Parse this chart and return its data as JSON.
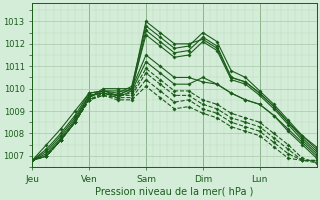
{
  "xlabel": "Pression niveau de la mer( hPa )",
  "bg_color": "#d4edd8",
  "plot_bg_color": "#d4edd8",
  "grid_major_color": "#a8c8a8",
  "grid_minor_color": "#b8d8b8",
  "line_color": "#1a5c1a",
  "ylim": [
    1006.5,
    1013.8
  ],
  "xlim": [
    0,
    120
  ],
  "day_labels": [
    "Jeu",
    "Ven",
    "Sam",
    "Dim",
    "Lun"
  ],
  "day_positions": [
    0,
    24,
    48,
    72,
    96
  ],
  "yticks": [
    1007,
    1008,
    1009,
    1010,
    1011,
    1012,
    1013
  ],
  "series": [
    {
      "start": 0,
      "points": [
        [
          0,
          1006.8
        ],
        [
          6,
          1007.5
        ],
        [
          12,
          1008.2
        ],
        [
          18,
          1009.0
        ],
        [
          24,
          1009.8
        ],
        [
          30,
          1009.9
        ],
        [
          36,
          1009.7
        ],
        [
          42,
          1010.0
        ],
        [
          48,
          1013.0
        ],
        [
          54,
          1012.5
        ],
        [
          60,
          1012.0
        ],
        [
          66,
          1012.0
        ],
        [
          72,
          1012.2
        ],
        [
          78,
          1011.8
        ],
        [
          84,
          1010.5
        ],
        [
          90,
          1010.3
        ],
        [
          96,
          1009.8
        ],
        [
          102,
          1009.2
        ],
        [
          108,
          1008.5
        ],
        [
          114,
          1007.9
        ],
        [
          120,
          1007.4
        ]
      ],
      "style": "solid"
    },
    {
      "start": 0,
      "points": [
        [
          0,
          1006.8
        ],
        [
          6,
          1007.3
        ],
        [
          12,
          1008.0
        ],
        [
          18,
          1008.8
        ],
        [
          24,
          1009.8
        ],
        [
          30,
          1009.9
        ],
        [
          36,
          1009.8
        ],
        [
          42,
          1010.1
        ],
        [
          48,
          1012.8
        ],
        [
          54,
          1012.3
        ],
        [
          60,
          1011.8
        ],
        [
          66,
          1011.9
        ],
        [
          72,
          1012.5
        ],
        [
          78,
          1012.1
        ],
        [
          84,
          1010.8
        ],
        [
          90,
          1010.5
        ],
        [
          96,
          1009.9
        ],
        [
          102,
          1009.3
        ],
        [
          108,
          1008.6
        ],
        [
          114,
          1007.9
        ],
        [
          120,
          1007.3
        ]
      ],
      "style": "solid"
    },
    {
      "start": 0,
      "points": [
        [
          0,
          1006.8
        ],
        [
          6,
          1007.2
        ],
        [
          12,
          1007.9
        ],
        [
          18,
          1008.7
        ],
        [
          24,
          1009.7
        ],
        [
          30,
          1009.8
        ],
        [
          36,
          1009.6
        ],
        [
          42,
          1009.9
        ],
        [
          48,
          1012.6
        ],
        [
          54,
          1012.1
        ],
        [
          60,
          1011.6
        ],
        [
          66,
          1011.7
        ],
        [
          72,
          1012.3
        ],
        [
          78,
          1011.9
        ],
        [
          84,
          1010.5
        ],
        [
          90,
          1010.3
        ],
        [
          96,
          1009.8
        ],
        [
          102,
          1009.2
        ],
        [
          108,
          1008.5
        ],
        [
          114,
          1007.8
        ],
        [
          120,
          1007.2
        ]
      ],
      "style": "solid"
    },
    {
      "start": 0,
      "points": [
        [
          0,
          1006.8
        ],
        [
          6,
          1007.1
        ],
        [
          12,
          1007.8
        ],
        [
          18,
          1008.6
        ],
        [
          24,
          1009.7
        ],
        [
          30,
          1009.8
        ],
        [
          36,
          1009.7
        ],
        [
          42,
          1010.0
        ],
        [
          48,
          1012.4
        ],
        [
          54,
          1011.9
        ],
        [
          60,
          1011.4
        ],
        [
          66,
          1011.5
        ],
        [
          72,
          1012.1
        ],
        [
          78,
          1011.7
        ],
        [
          84,
          1010.4
        ],
        [
          90,
          1010.2
        ],
        [
          96,
          1009.7
        ],
        [
          102,
          1009.1
        ],
        [
          108,
          1008.4
        ],
        [
          114,
          1007.7
        ],
        [
          120,
          1007.1
        ]
      ],
      "style": "solid"
    },
    {
      "start": 0,
      "points": [
        [
          0,
          1006.8
        ],
        [
          6,
          1007.0
        ],
        [
          12,
          1007.7
        ],
        [
          18,
          1008.5
        ],
        [
          24,
          1009.6
        ],
        [
          30,
          1010.0
        ],
        [
          36,
          1010.0
        ],
        [
          42,
          1010.0
        ],
        [
          48,
          1011.5
        ],
        [
          54,
          1011.0
        ],
        [
          60,
          1010.5
        ],
        [
          66,
          1010.5
        ],
        [
          72,
          1010.3
        ],
        [
          78,
          1010.2
        ],
        [
          84,
          1009.8
        ],
        [
          90,
          1009.5
        ],
        [
          96,
          1009.3
        ],
        [
          102,
          1008.8
        ],
        [
          108,
          1008.2
        ],
        [
          114,
          1007.6
        ],
        [
          120,
          1007.0
        ]
      ],
      "style": "solid"
    },
    {
      "start": 0,
      "points": [
        [
          0,
          1006.8
        ],
        [
          6,
          1007.0
        ],
        [
          12,
          1007.7
        ],
        [
          18,
          1008.5
        ],
        [
          24,
          1009.6
        ],
        [
          30,
          1009.9
        ],
        [
          36,
          1009.9
        ],
        [
          42,
          1009.9
        ],
        [
          48,
          1011.2
        ],
        [
          54,
          1010.7
        ],
        [
          60,
          1010.2
        ],
        [
          66,
          1010.2
        ],
        [
          72,
          1010.5
        ],
        [
          78,
          1010.2
        ],
        [
          84,
          1009.8
        ],
        [
          90,
          1009.5
        ],
        [
          96,
          1009.3
        ],
        [
          102,
          1008.8
        ],
        [
          108,
          1008.1
        ],
        [
          114,
          1007.5
        ],
        [
          120,
          1006.9
        ]
      ],
      "style": "solid"
    },
    {
      "start": 0,
      "points": [
        [
          0,
          1006.8
        ],
        [
          6,
          1007.0
        ],
        [
          12,
          1007.7
        ],
        [
          18,
          1008.5
        ],
        [
          24,
          1009.5
        ],
        [
          30,
          1009.8
        ],
        [
          36,
          1009.7
        ],
        [
          42,
          1009.8
        ],
        [
          48,
          1010.9
        ],
        [
          54,
          1010.4
        ],
        [
          60,
          1009.9
        ],
        [
          66,
          1009.9
        ],
        [
          72,
          1009.5
        ],
        [
          78,
          1009.3
        ],
        [
          84,
          1008.9
        ],
        [
          90,
          1008.7
        ],
        [
          96,
          1008.5
        ],
        [
          102,
          1008.0
        ],
        [
          108,
          1007.5
        ],
        [
          114,
          1006.9
        ],
        [
          120,
          1006.7
        ]
      ],
      "style": "dashed"
    },
    {
      "start": 0,
      "points": [
        [
          0,
          1006.8
        ],
        [
          6,
          1007.0
        ],
        [
          12,
          1007.7
        ],
        [
          18,
          1008.5
        ],
        [
          24,
          1009.5
        ],
        [
          30,
          1009.8
        ],
        [
          36,
          1009.7
        ],
        [
          42,
          1009.7
        ],
        [
          48,
          1010.7
        ],
        [
          54,
          1010.2
        ],
        [
          60,
          1009.7
        ],
        [
          66,
          1009.7
        ],
        [
          72,
          1009.3
        ],
        [
          78,
          1009.1
        ],
        [
          84,
          1008.7
        ],
        [
          90,
          1008.5
        ],
        [
          96,
          1008.3
        ],
        [
          102,
          1007.8
        ],
        [
          108,
          1007.3
        ],
        [
          114,
          1006.8
        ],
        [
          120,
          1006.7
        ]
      ],
      "style": "dashed"
    },
    {
      "start": 0,
      "points": [
        [
          0,
          1006.8
        ],
        [
          6,
          1007.0
        ],
        [
          12,
          1007.7
        ],
        [
          18,
          1008.5
        ],
        [
          24,
          1009.5
        ],
        [
          30,
          1009.7
        ],
        [
          36,
          1009.6
        ],
        [
          42,
          1009.6
        ],
        [
          48,
          1010.4
        ],
        [
          54,
          1009.9
        ],
        [
          60,
          1009.4
        ],
        [
          66,
          1009.5
        ],
        [
          72,
          1009.1
        ],
        [
          78,
          1008.9
        ],
        [
          84,
          1008.5
        ],
        [
          90,
          1008.3
        ],
        [
          96,
          1008.1
        ],
        [
          102,
          1007.6
        ],
        [
          108,
          1007.1
        ],
        [
          114,
          1006.8
        ],
        [
          120,
          1006.8
        ]
      ],
      "style": "dashed"
    },
    {
      "start": 0,
      "points": [
        [
          0,
          1006.8
        ],
        [
          6,
          1007.0
        ],
        [
          12,
          1007.7
        ],
        [
          18,
          1008.5
        ],
        [
          24,
          1009.5
        ],
        [
          30,
          1009.7
        ],
        [
          36,
          1009.5
        ],
        [
          42,
          1009.5
        ],
        [
          48,
          1010.1
        ],
        [
          54,
          1009.6
        ],
        [
          60,
          1009.1
        ],
        [
          66,
          1009.2
        ],
        [
          72,
          1008.9
        ],
        [
          78,
          1008.7
        ],
        [
          84,
          1008.3
        ],
        [
          90,
          1008.1
        ],
        [
          96,
          1007.9
        ],
        [
          102,
          1007.4
        ],
        [
          108,
          1006.9
        ],
        [
          114,
          1006.8
        ],
        [
          120,
          1006.8
        ]
      ],
      "style": "dashed"
    }
  ],
  "linewidth": 0.8,
  "markersize": 1.8
}
